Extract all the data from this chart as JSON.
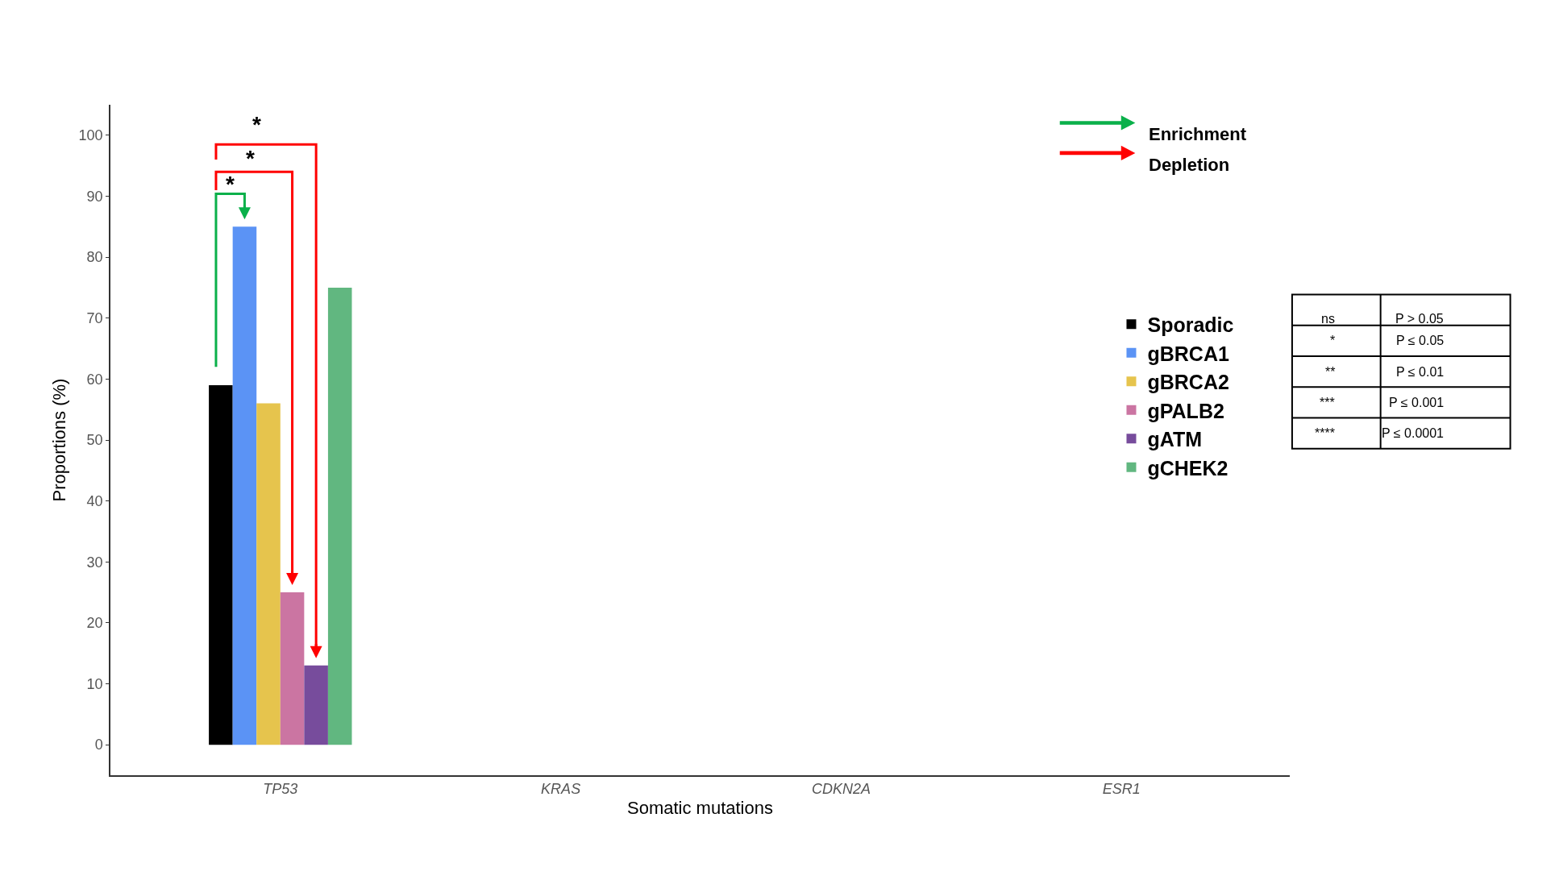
{
  "chart_data": {
    "type": "bar",
    "xlabel": "Somatic mutations",
    "ylabel": "Proportions (%)",
    "categories": [
      "TP53",
      "KRAS",
      "CDKN2A",
      "ESR1"
    ],
    "series": [
      {
        "name": "Sporadic",
        "color": "#000000",
        "values": [
          59,
          null,
          null,
          null
        ]
      },
      {
        "name": "gBRCA1",
        "color": "#5b93f5",
        "values": [
          85,
          null,
          null,
          null
        ]
      },
      {
        "name": "gBRCA2",
        "color": "#e6c44d",
        "values": [
          56,
          null,
          null,
          null
        ]
      },
      {
        "name": "gPALB2",
        "color": "#cb75a2",
        "values": [
          25,
          null,
          null,
          null
        ]
      },
      {
        "name": "gATM",
        "color": "#774c9c",
        "values": [
          13,
          null,
          null,
          null
        ]
      },
      {
        "name": "gCHEK2",
        "color": "#61b780",
        "values": [
          75,
          null,
          null,
          null
        ]
      }
    ],
    "ylim": [
      -5,
      105
    ],
    "yticks": [
      0,
      10,
      20,
      30,
      40,
      50,
      60,
      70,
      80,
      90,
      100
    ],
    "legend": "right",
    "annotations": [
      "*",
      "*",
      "*",
      "Enrichment",
      "Depletion",
      "ns",
      "P > 0.05",
      "*",
      "P ≤ 0.05",
      "**",
      "P ≤ 0.01",
      "***",
      "P ≤ 0.001",
      "****",
      "P ≤ 0.0001"
    ]
  }
}
